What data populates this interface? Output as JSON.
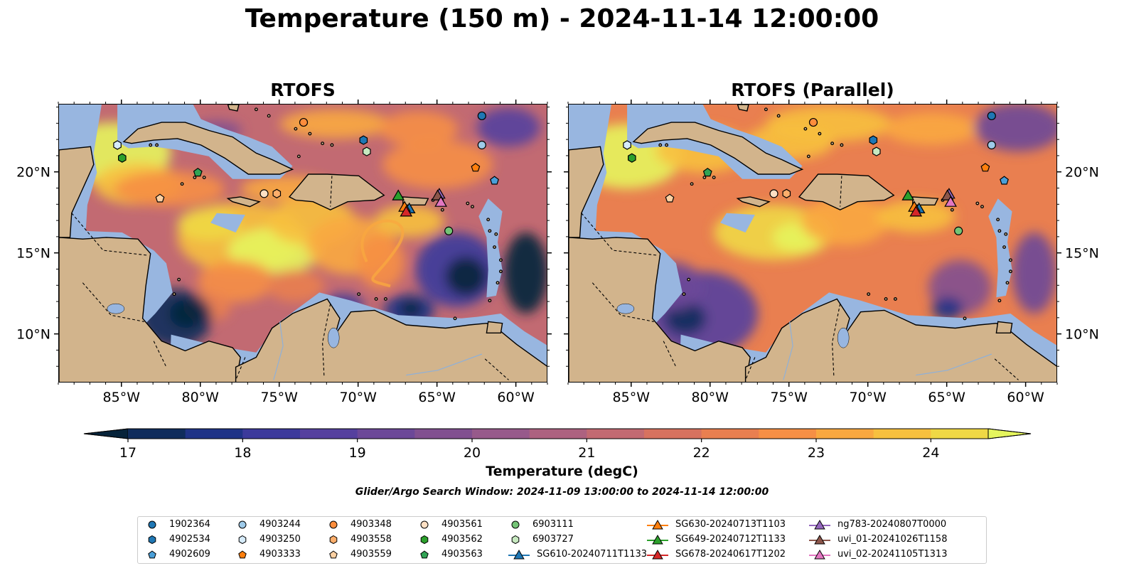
{
  "title": "Temperature (150 m) - 2024-11-14 12:00:00",
  "panels": [
    {
      "id": "left",
      "title": "RTOFS"
    },
    {
      "id": "right",
      "title": "RTOFS (Parallel)"
    }
  ],
  "map": {
    "lon_range": [
      -89,
      -58
    ],
    "lat_range": [
      7,
      24.2
    ],
    "lon_ticks": [
      "85°W",
      "80°W",
      "75°W",
      "70°W",
      "65°W",
      "60°W"
    ],
    "lat_ticks": [
      "20°N",
      "15°N",
      "10°N"
    ],
    "colors": {
      "land": "#d2b48c",
      "shelf": "#98b6e0",
      "deep_cold": "#06233a"
    }
  },
  "colorbar": {
    "ticks": [
      "17",
      "18",
      "19",
      "20",
      "21",
      "22",
      "23",
      "24"
    ],
    "range": [
      17,
      24.5
    ],
    "step": 0.5,
    "colors": [
      "#06233a",
      "#0f2c5c",
      "#1f3387",
      "#3c3a9b",
      "#55409e",
      "#6c4898",
      "#815090",
      "#975a8b",
      "#ad6280",
      "#c26a72",
      "#d7725f",
      "#e97f50",
      "#f68f45",
      "#f9a840",
      "#f7c03f",
      "#efd845",
      "#e5f55d"
    ],
    "label": "Temperature (degC)"
  },
  "search_window": "Glider/Argo Search Window: 2024-11-09 13:00:00 to 2024-11-14 12:00:00",
  "legend": [
    {
      "label": "1902364",
      "shape": "circle",
      "color": "#1f77b4"
    },
    {
      "label": "4902534",
      "shape": "hexagon",
      "color": "#1f77b4"
    },
    {
      "label": "4902609",
      "shape": "pentagon",
      "color": "#4a9fd8"
    },
    {
      "label": "4903244",
      "shape": "circle",
      "color": "#9ecae9"
    },
    {
      "label": "4903250",
      "shape": "hexagon",
      "color": "#d6ebfa"
    },
    {
      "label": "4903333",
      "shape": "pentagon",
      "color": "#ff7f0e"
    },
    {
      "label": "4903348",
      "shape": "circle",
      "color": "#fd8d3c"
    },
    {
      "label": "4903558",
      "shape": "hexagon",
      "color": "#fdae6b"
    },
    {
      "label": "4903559",
      "shape": "pentagon",
      "color": "#fdd0a2"
    },
    {
      "label": "4903561",
      "shape": "circle",
      "color": "#fee0c4"
    },
    {
      "label": "4903562",
      "shape": "hexagon",
      "color": "#2ca02c"
    },
    {
      "label": "4903563",
      "shape": "pentagon",
      "color": "#31a354"
    },
    {
      "label": "6903111",
      "shape": "circle",
      "color": "#74c476"
    },
    {
      "label": "6903727",
      "shape": "hexagon",
      "color": "#c7e9c0"
    },
    {
      "label": "SG610-20240711T1133",
      "shape": "triangle-line",
      "color": "#1f77b4"
    },
    {
      "label": "SG630-20240713T1103",
      "shape": "triangle-line",
      "color": "#ff7f0e"
    },
    {
      "label": "SG649-20240712T1133",
      "shape": "triangle-line",
      "color": "#2ca02c"
    },
    {
      "label": "SG678-20240617T1202",
      "shape": "triangle-line",
      "color": "#d62728"
    },
    {
      "label": "ng783-20240807T0000",
      "shape": "triangle-line",
      "color": "#9467bd"
    },
    {
      "label": "uvi_01-20241026T1158",
      "shape": "triangle-line",
      "color": "#8c564b"
    },
    {
      "label": "uvi_02-20241105T1313",
      "shape": "triangle-line",
      "color": "#e377c2"
    }
  ],
  "markers": [
    {
      "id": "1902364",
      "shape": "circle",
      "color": "#1f77b4",
      "lon": -62.2,
      "lat": 23.5
    },
    {
      "id": "4902534",
      "shape": "hexagon",
      "color": "#1f77b4",
      "lon": -69.7,
      "lat": 22.0
    },
    {
      "id": "4902609",
      "shape": "pentagon",
      "color": "#4a9fd8",
      "lon": -61.4,
      "lat": 19.5
    },
    {
      "id": "4903244",
      "shape": "circle",
      "color": "#9ecae9",
      "lon": -62.2,
      "lat": 21.7
    },
    {
      "id": "4903250",
      "shape": "hexagon",
      "color": "#d6ebfa",
      "lon": -85.3,
      "lat": 21.7
    },
    {
      "id": "4903333",
      "shape": "pentagon",
      "color": "#ff7f0e",
      "lon": -62.6,
      "lat": 20.3
    },
    {
      "id": "4903348",
      "shape": "circle",
      "color": "#fd8d3c",
      "lon": -73.5,
      "lat": 23.1
    },
    {
      "id": "4903558",
      "shape": "hexagon",
      "color": "#fdae6b",
      "lon": -75.2,
      "lat": 18.7
    },
    {
      "id": "4903559",
      "shape": "pentagon",
      "color": "#fdd0a2",
      "lon": -82.6,
      "lat": 18.4
    },
    {
      "id": "4903561",
      "shape": "circle",
      "color": "#fee0c4",
      "lon": -76.0,
      "lat": 18.7
    },
    {
      "id": "4903562",
      "shape": "hexagon",
      "color": "#2ca02c",
      "lon": -85.0,
      "lat": 20.9
    },
    {
      "id": "4903563",
      "shape": "pentagon",
      "color": "#31a354",
      "lon": -80.2,
      "lat": 20.0
    },
    {
      "id": "6903111",
      "shape": "circle",
      "color": "#74c476",
      "lon": -64.3,
      "lat": 16.4
    },
    {
      "id": "6903727",
      "shape": "hexagon",
      "color": "#c7e9c0",
      "lon": -69.5,
      "lat": 21.3
    },
    {
      "id": "SG610-20240711T1133",
      "shape": "triangle",
      "color": "#1f77b4",
      "lon": -66.8,
      "lat": 17.8
    },
    {
      "id": "SG630-20240713T1103",
      "shape": "triangle",
      "color": "#ff7f0e",
      "lon": -67.1,
      "lat": 17.9
    },
    {
      "id": "SG649-20240712T1133",
      "shape": "triangle",
      "color": "#2ca02c",
      "lon": -67.5,
      "lat": 18.6
    },
    {
      "id": "SG678-20240617T1202",
      "shape": "triangle",
      "color": "#d62728",
      "lon": -67.0,
      "lat": 17.6
    },
    {
      "id": "ng783-20240807T0000",
      "shape": "triangle",
      "color": "#9467bd",
      "lon": -64.9,
      "lat": 18.7
    },
    {
      "id": "uvi_01-20241026T1158",
      "shape": "triangle",
      "color": "#8c564b",
      "lon": -65.0,
      "lat": 18.6
    },
    {
      "id": "uvi_02-20241105T1313",
      "shape": "triangle",
      "color": "#e377c2",
      "lon": -64.8,
      "lat": 18.2
    }
  ]
}
